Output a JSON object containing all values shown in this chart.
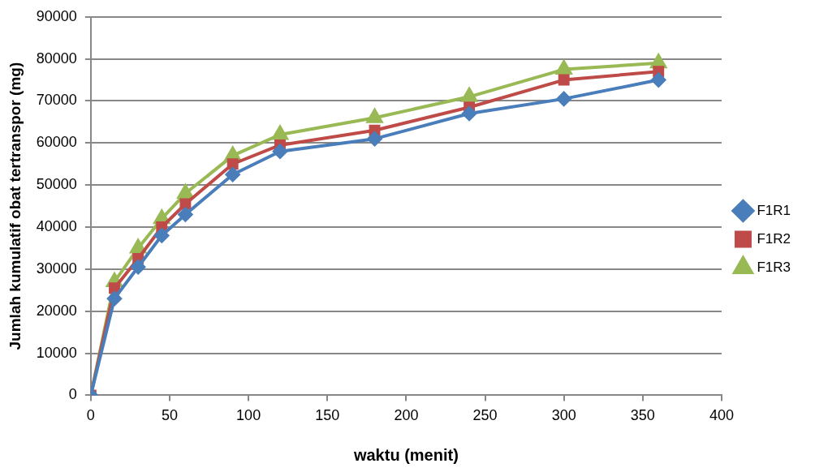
{
  "chart_data": {
    "type": "line",
    "xlabel": "waktu (menit)",
    "ylabel": "Jumlah kumulatif obat tertranspor (mg)",
    "x": [
      0,
      15,
      30,
      45,
      60,
      90,
      120,
      180,
      240,
      300,
      360
    ],
    "series": [
      {
        "name": "F1R1",
        "color": "#4a7ebb",
        "marker": "diamond",
        "values": [
          0,
          23000,
          30500,
          38000,
          43000,
          52500,
          58000,
          61000,
          67000,
          70500,
          75000
        ]
      },
      {
        "name": "F1R2",
        "color": "#be4b48",
        "marker": "square",
        "values": [
          0,
          25500,
          32500,
          40000,
          45500,
          55000,
          59500,
          63000,
          68500,
          75000,
          77000
        ]
      },
      {
        "name": "F1R3",
        "color": "#98b954",
        "marker": "triangle",
        "values": [
          0,
          27000,
          35000,
          42000,
          48000,
          57000,
          62000,
          66000,
          71000,
          77500,
          79000
        ]
      }
    ],
    "xlim": [
      0,
      400
    ],
    "xticks": [
      0,
      50,
      100,
      150,
      200,
      250,
      300,
      350,
      400
    ],
    "ylim": [
      0,
      90000
    ],
    "yticks": [
      0,
      10000,
      20000,
      30000,
      40000,
      50000,
      60000,
      70000,
      80000,
      90000
    ],
    "grid": "y",
    "legend": "right",
    "line_style": "solid"
  }
}
